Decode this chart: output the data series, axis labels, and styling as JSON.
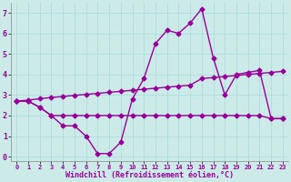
{
  "x": [
    0,
    1,
    2,
    3,
    4,
    5,
    6,
    7,
    8,
    9,
    10,
    11,
    12,
    13,
    14,
    15,
    16,
    17,
    18,
    19,
    20,
    21,
    22,
    23
  ],
  "line_main": [
    2.7,
    2.7,
    2.4,
    2.0,
    1.5,
    1.5,
    1.0,
    0.15,
    0.15,
    0.7,
    2.8,
    3.8,
    5.5,
    6.15,
    6.0,
    6.5,
    7.2,
    4.8,
    3.0,
    4.0,
    4.1,
    4.2,
    1.85,
    1.85
  ],
  "line_flat": [
    2.7,
    2.7,
    2.4,
    2.0,
    2.0,
    2.0,
    2.0,
    2.0,
    2.0,
    2.0,
    2.0,
    2.0,
    2.0,
    2.0,
    2.0,
    2.0,
    2.0,
    2.0,
    2.0,
    2.0,
    2.0,
    2.0,
    1.85,
    1.85
  ],
  "line_trend": [
    2.7,
    2.75,
    2.82,
    2.88,
    2.93,
    2.98,
    3.03,
    3.08,
    3.13,
    3.18,
    3.23,
    3.28,
    3.33,
    3.38,
    3.43,
    3.48,
    3.8,
    3.85,
    3.9,
    3.95,
    4.0,
    4.05,
    4.1,
    4.15
  ],
  "color": "#990099",
  "bg_color": "#cceae8",
  "grid_color": "#aadddd",
  "xlabel": "Windchill (Refroidissement éolien,°C)",
  "ylim": [
    -0.2,
    7.5
  ],
  "xlim": [
    -0.5,
    23.5
  ],
  "yticks": [
    0,
    1,
    2,
    3,
    4,
    5,
    6,
    7
  ],
  "xticks": [
    0,
    1,
    2,
    3,
    4,
    5,
    6,
    7,
    8,
    9,
    10,
    11,
    12,
    13,
    14,
    15,
    16,
    17,
    18,
    19,
    20,
    21,
    22,
    23
  ],
  "markersize": 2.5,
  "linewidth": 1.0,
  "xlabel_fontsize": 6.0,
  "tick_fontsize_x": 5.0,
  "tick_fontsize_y": 6.0
}
